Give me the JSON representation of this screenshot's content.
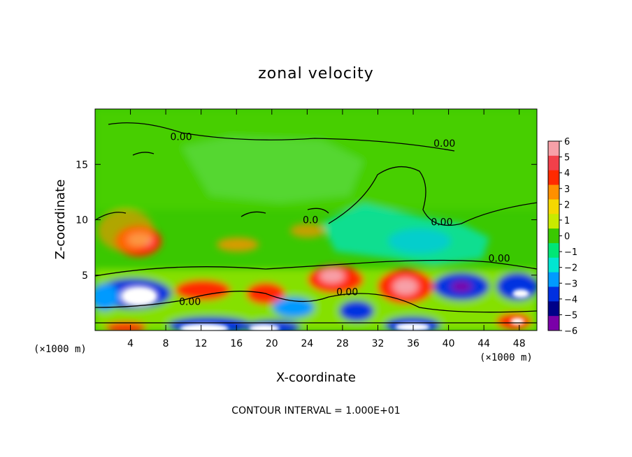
{
  "chart_data": {
    "type": "heatmap",
    "title": "zonal velocity",
    "xlabel": "X-coordinate",
    "ylabel": "Z-coordinate",
    "x_unit_left": "(×1000 m)",
    "x_unit_right": "(×1000 m)",
    "footer": "CONTOUR INTERVAL = 1.000E+01",
    "xlim": [
      0,
      50
    ],
    "ylim": [
      0,
      20
    ],
    "x_ticks": [
      4,
      8,
      12,
      16,
      20,
      24,
      28,
      32,
      36,
      40,
      44,
      48
    ],
    "y_ticks": [
      5,
      10,
      15
    ],
    "contour_labels": [
      {
        "text": "0.00",
        "x": 8.5,
        "y": 17.2
      },
      {
        "text": "0.00",
        "x": 38.3,
        "y": 16.6
      },
      {
        "text": "0.00",
        "x": 38.0,
        "y": 9.5
      },
      {
        "text": "0.00",
        "x": 44.5,
        "y": 6.2
      },
      {
        "text": "0.00",
        "x": 9.5,
        "y": 2.3
      },
      {
        "text": "0.00",
        "x": 27.3,
        "y": 3.2
      },
      {
        "text": "0.0",
        "x": 23.5,
        "y": 9.7
      }
    ],
    "colorbar": {
      "levels": [
        6,
        5,
        4,
        3,
        2,
        1,
        0,
        -1,
        -2,
        -3,
        -4,
        -5,
        -6
      ],
      "colors": [
        "#f7a0a8",
        "#f2404a",
        "#ff2a00",
        "#ff9000",
        "#f5d800",
        "#c8ea00",
        "#3ac800",
        "#00e676",
        "#00e6d2",
        "#009aff",
        "#0030e0",
        "#000088",
        "#7a00a8"
      ]
    }
  }
}
